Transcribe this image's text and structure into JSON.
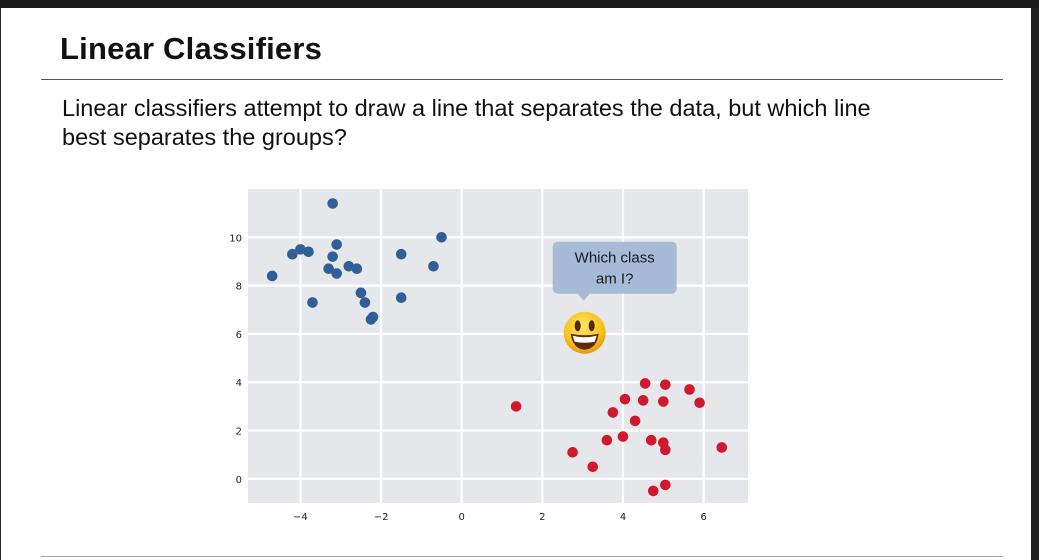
{
  "slide": {
    "title": "Linear Classifiers",
    "body": "Linear classifiers attempt to draw a line that separates the data, but which line best separates the groups?"
  },
  "chart_data": {
    "type": "scatter",
    "title": "",
    "xlabel": "",
    "ylabel": "",
    "xlim": [
      -5.3,
      7.1
    ],
    "ylim": [
      -1.0,
      12.0
    ],
    "grid": true,
    "x_ticks": [
      -4,
      -2,
      0,
      2,
      4,
      6
    ],
    "y_ticks": [
      0,
      2,
      4,
      6,
      8,
      10
    ],
    "x_tick_labels": [
      "−4",
      "−2",
      "0",
      "2",
      "4",
      "6"
    ],
    "y_tick_labels": [
      "0",
      "2",
      "4",
      "6",
      "8",
      "10"
    ],
    "series": [
      {
        "name": "blue",
        "color": "#2f5f96",
        "points": [
          [
            -3.2,
            11.4
          ],
          [
            -0.5,
            10.0
          ],
          [
            -3.1,
            9.7
          ],
          [
            -4.0,
            9.5
          ],
          [
            -3.8,
            9.4
          ],
          [
            -4.2,
            9.3
          ],
          [
            -1.5,
            9.3
          ],
          [
            -3.2,
            9.2
          ],
          [
            -2.8,
            8.8
          ],
          [
            -0.7,
            8.8
          ],
          [
            -3.3,
            8.7
          ],
          [
            -2.6,
            8.7
          ],
          [
            -3.1,
            8.5
          ],
          [
            -4.7,
            8.4
          ],
          [
            -2.5,
            7.7
          ],
          [
            -1.5,
            7.5
          ],
          [
            -3.7,
            7.3
          ],
          [
            -2.4,
            7.3
          ],
          [
            -2.2,
            6.7
          ],
          [
            -2.25,
            6.6
          ]
        ]
      },
      {
        "name": "red",
        "color": "#d0182f",
        "points": [
          [
            4.55,
            3.95
          ],
          [
            5.05,
            3.9
          ],
          [
            5.65,
            3.7
          ],
          [
            4.05,
            3.3
          ],
          [
            4.5,
            3.25
          ],
          [
            5.0,
            3.2
          ],
          [
            5.9,
            3.15
          ],
          [
            1.35,
            3.0
          ],
          [
            3.75,
            2.75
          ],
          [
            4.3,
            2.4
          ],
          [
            4.0,
            1.75
          ],
          [
            3.6,
            1.6
          ],
          [
            4.7,
            1.6
          ],
          [
            5.0,
            1.5
          ],
          [
            5.05,
            1.2
          ],
          [
            6.45,
            1.3
          ],
          [
            2.75,
            1.1
          ],
          [
            3.25,
            0.5
          ],
          [
            5.05,
            -0.25
          ],
          [
            4.75,
            -0.5
          ]
        ]
      }
    ],
    "annotation": {
      "text_line1": "Which class",
      "text_line2": "am I?",
      "marker": "grinning-face-emoji",
      "marker_position": [
        3.05,
        6.05
      ],
      "bubble_color": "#a7bad8"
    }
  }
}
